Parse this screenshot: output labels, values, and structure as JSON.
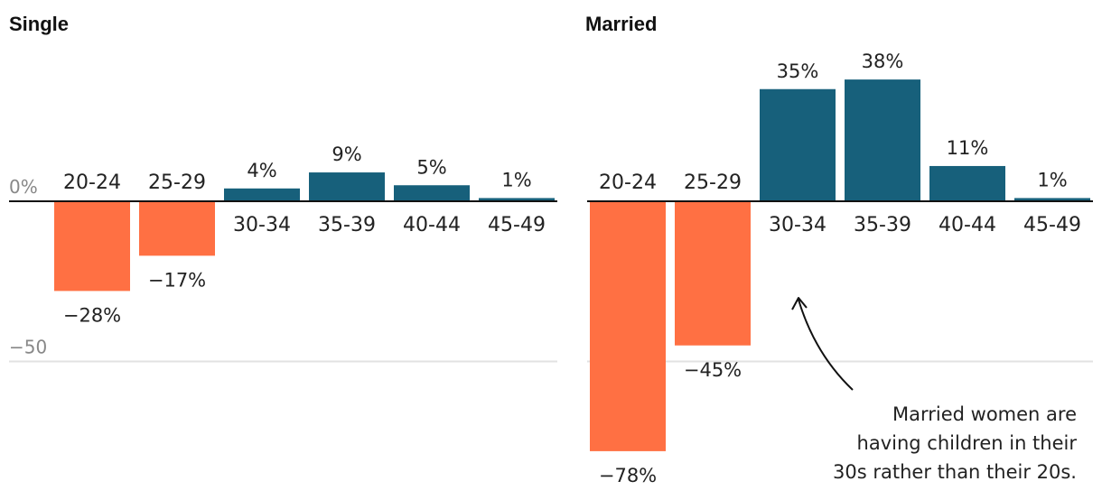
{
  "colors": {
    "positive": "#17607b",
    "negative": "#ff7043",
    "zero_line": "#111111",
    "gridline": "#e2e2e2"
  },
  "chart_data": [
    {
      "type": "bar",
      "title": "Single",
      "categories": [
        "20-24",
        "25-29",
        "30-34",
        "35-39",
        "40-44",
        "45-49"
      ],
      "values": [
        -28,
        -17,
        4,
        9,
        5,
        1
      ],
      "value_labels": [
        "−28%",
        "−17%",
        "4%",
        "9%",
        "5%",
        "1%"
      ],
      "y_ticks": [
        {
          "value": 0,
          "label": "0%"
        },
        {
          "value": -50,
          "label": "−50"
        }
      ],
      "ylim": [
        -80,
        40
      ],
      "grid": true
    },
    {
      "type": "bar",
      "title": "Married",
      "categories": [
        "20-24",
        "25-29",
        "30-34",
        "35-39",
        "40-44",
        "45-49"
      ],
      "values": [
        -78,
        -45,
        35,
        38,
        11,
        1
      ],
      "value_labels": [
        "−78%",
        "−45%",
        "35%",
        "38%",
        "11%",
        "1%"
      ],
      "y_ticks": [
        {
          "value": 0,
          "label": ""
        },
        {
          "value": -50,
          "label": ""
        }
      ],
      "ylim": [
        -80,
        40
      ],
      "grid": true,
      "annotation": {
        "lines": [
          "Married women are",
          "having children in their",
          "30s rather than their 20s."
        ]
      }
    }
  ]
}
